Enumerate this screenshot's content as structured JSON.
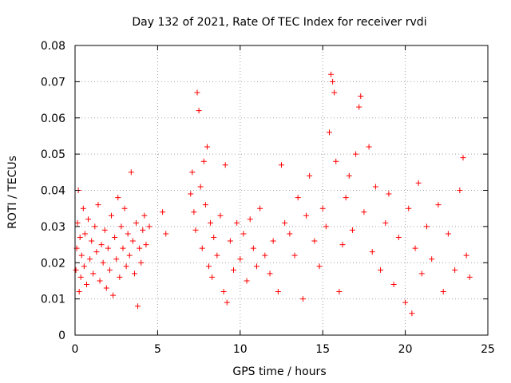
{
  "chart_data": {
    "type": "scatter",
    "title": "Day 132 of 2021, Rate Of TEC Index for receiver rvdi",
    "xlabel": "GPS time / hours",
    "ylabel": "ROTI / TECUs",
    "xlim": [
      0,
      25
    ],
    "ylim": [
      0,
      0.08
    ],
    "xticks": [
      0,
      5,
      10,
      15,
      20,
      25
    ],
    "yticks": [
      0,
      0.01,
      0.02,
      0.03,
      0.04,
      0.05,
      0.06,
      0.07,
      0.08
    ],
    "xtick_labels": [
      "0",
      "5",
      "10",
      "15",
      "20",
      "25"
    ],
    "ytick_labels": [
      "0",
      "0.01",
      "0.02",
      "0.03",
      "0.04",
      "0.05",
      "0.06",
      "0.07",
      "0.08"
    ],
    "grid": true,
    "marker": "+",
    "color": "#ff0000",
    "series": [
      {
        "points": [
          [
            0.05,
            0.018
          ],
          [
            0.1,
            0.024
          ],
          [
            0.15,
            0.031
          ],
          [
            0.2,
            0.04
          ],
          [
            0.25,
            0.012
          ],
          [
            0.3,
            0.027
          ],
          [
            0.35,
            0.016
          ],
          [
            0.4,
            0.022
          ],
          [
            0.5,
            0.035
          ],
          [
            0.55,
            0.019
          ],
          [
            0.6,
            0.028
          ],
          [
            0.7,
            0.014
          ],
          [
            0.8,
            0.032
          ],
          [
            0.9,
            0.021
          ],
          [
            1.0,
            0.026
          ],
          [
            1.1,
            0.017
          ],
          [
            1.2,
            0.03
          ],
          [
            1.3,
            0.023
          ],
          [
            1.4,
            0.036
          ],
          [
            1.5,
            0.015
          ],
          [
            1.6,
            0.025
          ],
          [
            1.7,
            0.02
          ],
          [
            1.8,
            0.029
          ],
          [
            1.9,
            0.013
          ],
          [
            2.0,
            0.024
          ],
          [
            2.1,
            0.018
          ],
          [
            2.2,
            0.033
          ],
          [
            2.3,
            0.011
          ],
          [
            2.4,
            0.027
          ],
          [
            2.5,
            0.021
          ],
          [
            2.6,
            0.038
          ],
          [
            2.7,
            0.016
          ],
          [
            2.8,
            0.03
          ],
          [
            2.9,
            0.024
          ],
          [
            3.0,
            0.035
          ],
          [
            3.1,
            0.019
          ],
          [
            3.2,
            0.028
          ],
          [
            3.3,
            0.022
          ],
          [
            3.4,
            0.045
          ],
          [
            3.5,
            0.026
          ],
          [
            3.6,
            0.017
          ],
          [
            3.7,
            0.031
          ],
          [
            3.8,
            0.008
          ],
          [
            3.9,
            0.024
          ],
          [
            4.0,
            0.02
          ],
          [
            4.1,
            0.029
          ],
          [
            4.2,
            0.033
          ],
          [
            4.3,
            0.025
          ],
          [
            4.5,
            0.03
          ],
          [
            5.3,
            0.034
          ],
          [
            5.5,
            0.028
          ],
          [
            7.0,
            0.039
          ],
          [
            7.1,
            0.045
          ],
          [
            7.2,
            0.034
          ],
          [
            7.3,
            0.029
          ],
          [
            7.4,
            0.067
          ],
          [
            7.5,
            0.062
          ],
          [
            7.6,
            0.041
          ],
          [
            7.7,
            0.024
          ],
          [
            7.8,
            0.048
          ],
          [
            7.9,
            0.036
          ],
          [
            8.0,
            0.052
          ],
          [
            8.1,
            0.019
          ],
          [
            8.2,
            0.031
          ],
          [
            8.3,
            0.016
          ],
          [
            8.4,
            0.027
          ],
          [
            8.6,
            0.022
          ],
          [
            8.8,
            0.033
          ],
          [
            9.0,
            0.012
          ],
          [
            9.1,
            0.047
          ],
          [
            9.2,
            0.009
          ],
          [
            9.4,
            0.026
          ],
          [
            9.6,
            0.018
          ],
          [
            9.8,
            0.031
          ],
          [
            10.0,
            0.021
          ],
          [
            10.2,
            0.028
          ],
          [
            10.4,
            0.015
          ],
          [
            10.6,
            0.032
          ],
          [
            10.8,
            0.024
          ],
          [
            11.0,
            0.019
          ],
          [
            11.2,
            0.035
          ],
          [
            11.5,
            0.022
          ],
          [
            11.8,
            0.017
          ],
          [
            12.0,
            0.026
          ],
          [
            12.3,
            0.012
          ],
          [
            12.5,
            0.047
          ],
          [
            12.7,
            0.031
          ],
          [
            13.0,
            0.028
          ],
          [
            13.3,
            0.022
          ],
          [
            13.5,
            0.038
          ],
          [
            13.8,
            0.01
          ],
          [
            14.0,
            0.033
          ],
          [
            14.2,
            0.044
          ],
          [
            14.5,
            0.026
          ],
          [
            14.8,
            0.019
          ],
          [
            15.0,
            0.035
          ],
          [
            15.2,
            0.03
          ],
          [
            15.4,
            0.056
          ],
          [
            15.5,
            0.072
          ],
          [
            15.6,
            0.07
          ],
          [
            15.7,
            0.067
          ],
          [
            15.8,
            0.048
          ],
          [
            16.0,
            0.012
          ],
          [
            16.2,
            0.025
          ],
          [
            16.4,
            0.038
          ],
          [
            16.6,
            0.044
          ],
          [
            16.8,
            0.029
          ],
          [
            17.0,
            0.05
          ],
          [
            17.2,
            0.063
          ],
          [
            17.3,
            0.066
          ],
          [
            17.5,
            0.034
          ],
          [
            17.8,
            0.052
          ],
          [
            18.0,
            0.023
          ],
          [
            18.2,
            0.041
          ],
          [
            18.5,
            0.018
          ],
          [
            18.8,
            0.031
          ],
          [
            19.0,
            0.039
          ],
          [
            19.3,
            0.014
          ],
          [
            19.6,
            0.027
          ],
          [
            20.0,
            0.009
          ],
          [
            20.2,
            0.035
          ],
          [
            20.4,
            0.006
          ],
          [
            20.6,
            0.024
          ],
          [
            20.8,
            0.042
          ],
          [
            21.0,
            0.017
          ],
          [
            21.3,
            0.03
          ],
          [
            21.6,
            0.021
          ],
          [
            22.0,
            0.036
          ],
          [
            22.3,
            0.012
          ],
          [
            22.6,
            0.028
          ],
          [
            23.0,
            0.018
          ],
          [
            23.3,
            0.04
          ],
          [
            23.5,
            0.049
          ],
          [
            23.7,
            0.022
          ],
          [
            23.9,
            0.016
          ]
        ]
      }
    ]
  }
}
